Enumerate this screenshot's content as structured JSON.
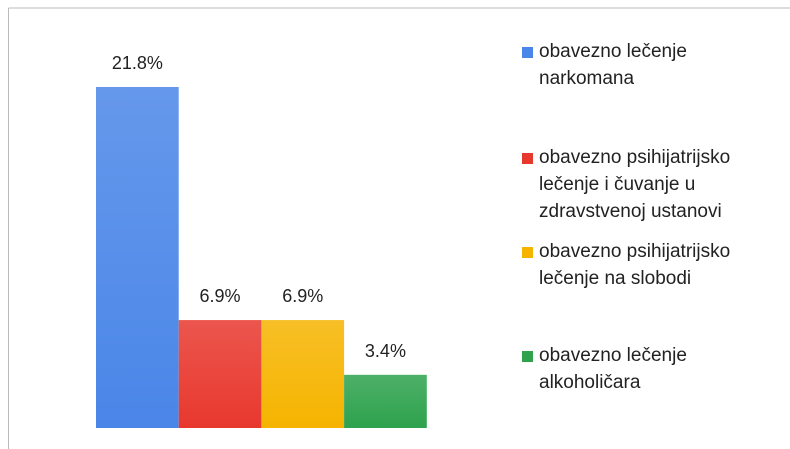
{
  "chart_data": {
    "type": "bar",
    "series": [
      {
        "name": "obavezno lečenje narkomana",
        "color": "#4a86e8",
        "values": [
          21.8
        ],
        "value_labels": [
          "21.8%"
        ]
      },
      {
        "name": "obavezno psihijatrijsko lečenje i čuvanje u zdravstvenoj ustanovi",
        "color": "#e8382e",
        "values": [
          6.9
        ],
        "value_labels": [
          "6.9%"
        ]
      },
      {
        "name": "obavezno psihijatrijsko lečenje na slobodi",
        "color": "#f6b400",
        "values": [
          6.9
        ],
        "value_labels": [
          "6.9%"
        ]
      },
      {
        "name": "obavezno lečenje alkoholičara",
        "color": "#2ea24d",
        "values": [
          3.4
        ],
        "value_labels": [
          "3.4%"
        ]
      }
    ]
  }
}
